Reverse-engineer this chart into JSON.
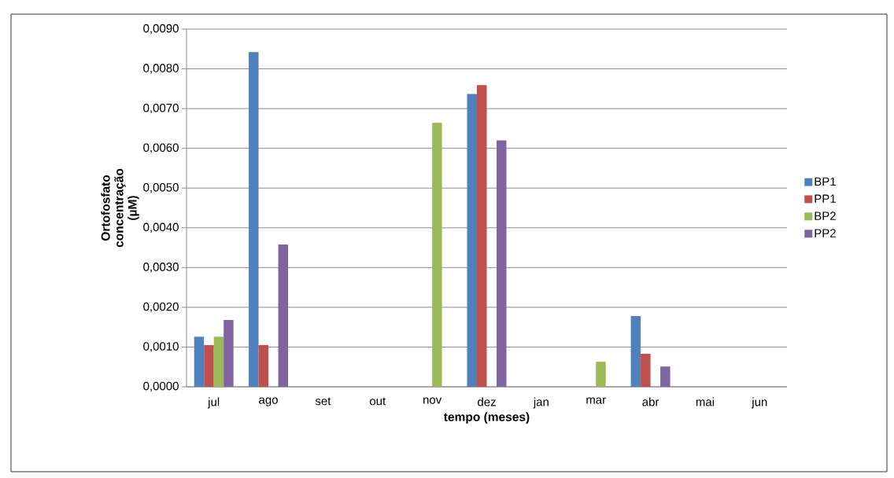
{
  "chart_data": {
    "type": "bar",
    "xlabel": "tempo (meses)",
    "ylabel": "Ortofosfato concentração (µM)",
    "categories": [
      "jul",
      "ago",
      "set",
      "out",
      "nov",
      "dez",
      "jan",
      "mar",
      "abr",
      "mai",
      "jun"
    ],
    "series": [
      {
        "name": "BP1",
        "color": "#4f81bd",
        "values": [
          0.00126,
          0.00842,
          null,
          null,
          null,
          0.00737,
          null,
          null,
          0.00178,
          null,
          null
        ]
      },
      {
        "name": "PP1",
        "color": "#c0504d",
        "values": [
          0.00105,
          0.00105,
          null,
          null,
          null,
          0.00759,
          null,
          null,
          0.00083,
          null,
          null
        ]
      },
      {
        "name": "BP2",
        "color": "#9bbb59",
        "values": [
          0.00126,
          null,
          null,
          null,
          0.00664,
          null,
          null,
          0.00063,
          null,
          null,
          null
        ]
      },
      {
        "name": "PP2",
        "color": "#8064a2",
        "values": [
          0.00168,
          0.00358,
          null,
          null,
          null,
          0.0062,
          null,
          null,
          0.00051,
          null,
          null
        ]
      }
    ],
    "ylim": [
      0,
      0.009
    ],
    "yticks": [
      {
        "value": 0,
        "label": "0,0000"
      },
      {
        "value": 0.001,
        "label": "0,0010"
      },
      {
        "value": 0.002,
        "label": "0,0020"
      },
      {
        "value": 0.003,
        "label": "0,0030"
      },
      {
        "value": 0.004,
        "label": "0,0040"
      },
      {
        "value": 0.005,
        "label": "0,0050"
      },
      {
        "value": 0.006,
        "label": "0,0060"
      },
      {
        "value": 0.007,
        "label": "0,0070"
      },
      {
        "value": 0.008,
        "label": "0,0080"
      },
      {
        "value": 0.009,
        "label": "0,0090"
      }
    ],
    "grid": "y",
    "legend": "right"
  }
}
